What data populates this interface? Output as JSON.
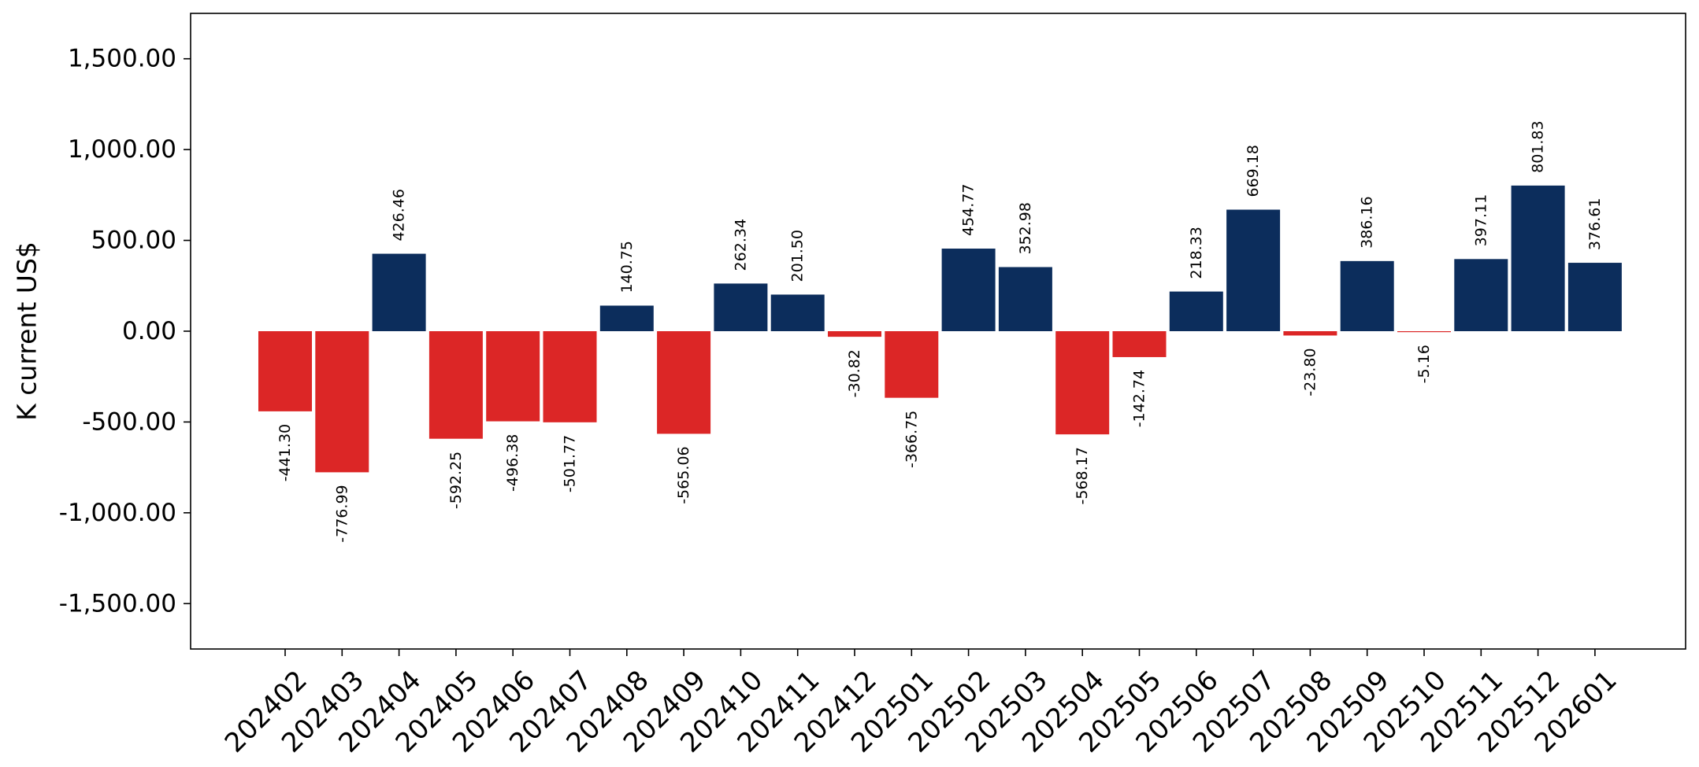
{
  "chart_data": {
    "type": "bar",
    "ylabel": "K current US$",
    "xlabel": "",
    "title": "",
    "ylim": [
      -1750,
      1750
    ],
    "yticks": [
      -1500,
      -1000,
      -500,
      0,
      500,
      1000,
      1500
    ],
    "ytick_labels": [
      "-1,500.00",
      "-1,000.00",
      "-500.00",
      "0.00",
      "500.00",
      "1,000.00",
      "1,500.00"
    ],
    "grid": false,
    "categories": [
      "202402",
      "202403",
      "202404",
      "202405",
      "202406",
      "202407",
      "202408",
      "202409",
      "202410",
      "202411",
      "202412",
      "202501",
      "202502",
      "202503",
      "202504",
      "202505",
      "202506",
      "202507",
      "202508",
      "202509",
      "202510",
      "202511",
      "202512",
      "202601"
    ],
    "values": [
      -441.3,
      -776.99,
      426.46,
      -592.25,
      -496.38,
      -501.77,
      140.75,
      -565.06,
      262.34,
      201.5,
      -30.82,
      -366.75,
      454.77,
      352.98,
      -568.17,
      -142.74,
      218.33,
      669.18,
      -23.8,
      386.16,
      -5.16,
      397.11,
      801.83,
      376.61
    ],
    "value_labels": [
      "-441.30",
      "-776.99",
      "426.46",
      "-592.25",
      "-496.38",
      "-501.77",
      "140.75",
      "-565.06",
      "262.34",
      "201.50",
      "-30.82",
      "-366.75",
      "454.77",
      "352.98",
      "-568.17",
      "-142.74",
      "218.33",
      "669.18",
      "-23.80",
      "386.16",
      "-5.16",
      "397.11",
      "801.83",
      "376.61"
    ],
    "colors": {
      "positive": "#0c2d5c",
      "negative": "#dc2626",
      "axis": "#000000"
    }
  }
}
